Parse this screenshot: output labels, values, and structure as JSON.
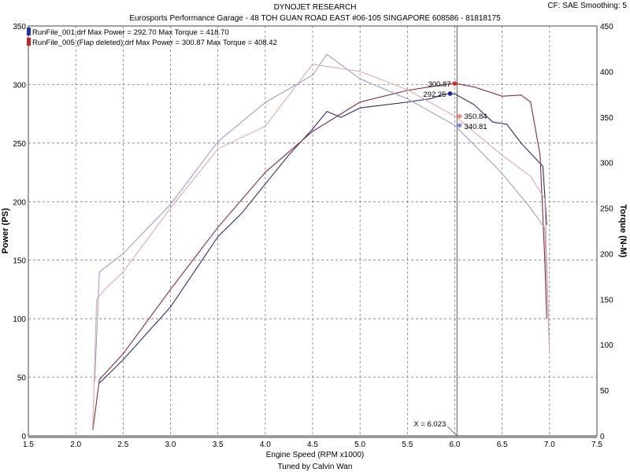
{
  "header": {
    "title": "DYNOJET RESEARCH",
    "subtitle": "Eurosports Performance Garage - 48 TOH GUAN ROAD EAST #06-105 SINGAPORE 608586 - 81818175",
    "settings": "CF: SAE  Smoothing: 5",
    "footer": "Tuned by Calvin Wan"
  },
  "chart_data": {
    "type": "line",
    "title": "DYNOJET RESEARCH",
    "xlabel": "Engine Speed (RPM x1000)",
    "ylabel": "Power (PS)",
    "y2label": "Torque (N-M)",
    "xlim": [
      1.5,
      7.5
    ],
    "ylim": [
      0,
      350
    ],
    "y2lim": [
      0,
      450
    ],
    "xticks": [
      "1.5",
      "2.0",
      "2.5",
      "3.0",
      "3.5",
      "4.0",
      "4.5",
      "5.0",
      "5.5",
      "6.0",
      "6.5",
      "7.0",
      "7.5"
    ],
    "yticks": [
      "0",
      "50",
      "100",
      "150",
      "200",
      "250",
      "300",
      "350"
    ],
    "y2ticks": [
      "0",
      "50",
      "100",
      "150",
      "200",
      "250",
      "300",
      "350",
      "400",
      "450"
    ],
    "grid": true,
    "legend": [
      {
        "label": "RunFile_001.drf Max Power = 292.70    Max Torque = 418.70",
        "color": "#2233aa"
      },
      {
        "label": "RunFile_005 (Flap deleted).drf Max Power = 300.87    Max Torque = 408.42",
        "color": "#cc2222"
      }
    ],
    "cursor": {
      "x": 6.023,
      "label": "X = 6.023"
    },
    "series": [
      {
        "run": "RunFile_001",
        "measure": "power",
        "axis": "left",
        "color": "#2a2f7a",
        "x": [
          2.25,
          2.5,
          3.0,
          3.5,
          3.75,
          4.0,
          4.25,
          4.5,
          4.65,
          4.8,
          5.0,
          5.5,
          5.75,
          5.9,
          6.0,
          6.2,
          6.4,
          6.55,
          6.7,
          6.85,
          6.93,
          6.97
        ],
        "y": [
          45,
          65,
          110,
          170,
          190,
          215,
          240,
          262,
          277,
          272,
          280,
          285,
          288,
          292,
          292,
          283,
          268,
          266,
          250,
          237,
          230,
          180
        ]
      },
      {
        "run": "RunFile_005",
        "measure": "power",
        "axis": "left",
        "color": "#8a2a3a",
        "x": [
          2.18,
          2.25,
          2.5,
          3.0,
          3.5,
          4.0,
          4.5,
          5.0,
          5.5,
          5.9,
          6.0,
          6.2,
          6.5,
          6.7,
          6.8,
          6.9,
          6.95,
          6.97
        ],
        "y": [
          5,
          48,
          70,
          125,
          178,
          225,
          260,
          285,
          295,
          300,
          301,
          298,
          290,
          291,
          285,
          240,
          150,
          100
        ]
      },
      {
        "run": "RunFile_001",
        "measure": "torque",
        "axis": "right",
        "color": "#9aa0cc",
        "x": [
          2.2,
          2.25,
          2.5,
          3.0,
          3.5,
          4.0,
          4.5,
          4.65,
          5.0,
          5.5,
          6.0,
          6.5,
          6.8,
          6.95,
          7.0
        ],
        "y": [
          60,
          180,
          200,
          254,
          323,
          366,
          396,
          419,
          392,
          370,
          341,
          288,
          250,
          228,
          90
        ]
      },
      {
        "run": "RunFile_005",
        "measure": "torque",
        "axis": "right",
        "color": "#e0a8a8",
        "x": [
          2.18,
          2.22,
          2.3,
          2.5,
          3.0,
          3.5,
          4.0,
          4.5,
          5.0,
          5.5,
          6.0,
          6.5,
          6.8,
          6.95,
          7.0
        ],
        "y": [
          10,
          150,
          160,
          180,
          250,
          315,
          340,
          408,
          400,
          380,
          351,
          308,
          285,
          260,
          90
        ]
      }
    ],
    "data_labels": [
      {
        "text": "300.87",
        "x": 6.0,
        "y": 300.87,
        "axis": "left",
        "color": "#dd2222",
        "side": "left"
      },
      {
        "text": "292.25",
        "x": 5.95,
        "y": 292.25,
        "axis": "left",
        "color": "#1122aa",
        "side": "left"
      },
      {
        "text": "350.84",
        "x": 6.05,
        "y": 350.84,
        "axis": "right",
        "color": "#ee8888",
        "side": "right"
      },
      {
        "text": "340.81",
        "x": 6.05,
        "y": 340.81,
        "axis": "right",
        "color": "#8888dd",
        "side": "right"
      }
    ]
  }
}
